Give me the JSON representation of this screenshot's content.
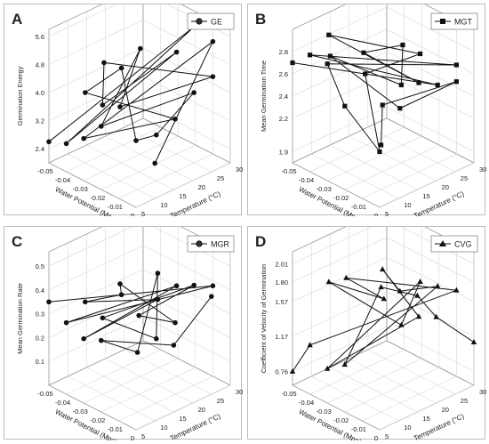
{
  "chart_data": [
    {
      "panel_letter": "A",
      "type": "line",
      "title": "",
      "legend": {
        "label": "GE",
        "marker": "circle",
        "placement": "top-right"
      },
      "zlabel": "Germination Energy",
      "xlabel": "Water Potential (Mpa)",
      "ylabel": "Temperature (°C)",
      "z_ticks": [
        "2.4",
        "3.2",
        "4.0",
        "4.8",
        "5.6"
      ],
      "x_ticks": [
        "-0.05",
        "-0.04",
        "-0.03",
        "-0.02",
        "-0.01",
        "0"
      ],
      "y_ticks": [
        "5",
        "10",
        "15",
        "20",
        "25",
        "30"
      ],
      "zlim": [
        2.0,
        5.8
      ],
      "grid": true,
      "points": [
        {
          "wp": -0.05,
          "t": 5,
          "v": 2.6
        },
        {
          "wp": -0.02,
          "t": 30,
          "v": 5.4
        },
        {
          "wp": -0.04,
          "t": 5,
          "v": 2.8
        },
        {
          "wp": -0.02,
          "t": 25,
          "v": 4.9
        },
        {
          "wp": -0.03,
          "t": 10,
          "v": 3.9
        },
        {
          "wp": -0.04,
          "t": 15,
          "v": 4.6
        },
        {
          "wp": -0.01,
          "t": 30,
          "v": 4.2
        },
        {
          "wp": -0.02,
          "t": 10,
          "v": 4.1
        },
        {
          "wp": -0.03,
          "t": 20,
          "v": 5.0
        },
        {
          "wp": -0.02,
          "t": 5,
          "v": 3.8
        },
        {
          "wp": -0.01,
          "t": 25,
          "v": 4.0
        },
        {
          "wp": -0.01,
          "t": 15,
          "v": 3.3
        },
        {
          "wp": 0.0,
          "t": 5,
          "v": 3.9
        },
        {
          "wp": -0.03,
          "t": 15,
          "v": 4.7
        },
        {
          "wp": -0.04,
          "t": 10,
          "v": 4.0
        },
        {
          "wp": -0.01,
          "t": 20,
          "v": 3.5
        },
        {
          "wp": -0.03,
          "t": 5,
          "v": 3.2
        },
        {
          "wp": -0.01,
          "t": 30,
          "v": 5.2
        },
        {
          "wp": 0.0,
          "t": 10,
          "v": 3.0
        }
      ]
    },
    {
      "panel_letter": "B",
      "type": "line",
      "title": "",
      "legend": {
        "label": "MGT",
        "marker": "square",
        "placement": "top-right"
      },
      "zlabel": "Mean Germination Time",
      "xlabel": "Water Potential (Mpa)",
      "ylabel": "Temperature (°C)",
      "z_ticks": [
        "1.9",
        "2.2",
        "2.4",
        "2.6",
        "2.8"
      ],
      "x_ticks": [
        "-0.05",
        "-0.04",
        "-0.03",
        "-0.02",
        "-0.01",
        "0"
      ],
      "y_ticks": [
        "5",
        "10",
        "15",
        "20",
        "25",
        "30"
      ],
      "zlim": [
        1.8,
        3.0
      ],
      "grid": true,
      "points": [
        {
          "wp": -0.05,
          "t": 5,
          "v": 2.7
        },
        {
          "wp": -0.01,
          "t": 25,
          "v": 2.5
        },
        {
          "wp": -0.04,
          "t": 5,
          "v": 2.85
        },
        {
          "wp": -0.01,
          "t": 30,
          "v": 2.6
        },
        {
          "wp": -0.03,
          "t": 5,
          "v": 2.85
        },
        {
          "wp": -0.02,
          "t": 5,
          "v": 2.55
        },
        {
          "wp": 0.0,
          "t": 5,
          "v": 2.3
        },
        {
          "wp": -0.03,
          "t": 15,
          "v": 2.6
        },
        {
          "wp": -0.02,
          "t": 25,
          "v": 2.7
        },
        {
          "wp": -0.04,
          "t": 10,
          "v": 2.95
        },
        {
          "wp": -0.01,
          "t": 20,
          "v": 2.6
        },
        {
          "wp": -0.02,
          "t": 10,
          "v": 2.95
        },
        {
          "wp": -0.03,
          "t": 25,
          "v": 2.7
        },
        {
          "wp": -0.02,
          "t": 20,
          "v": 2.5
        },
        {
          "wp": -0.05,
          "t": 15,
          "v": 2.6
        },
        {
          "wp": -0.01,
          "t": 15,
          "v": 2.45
        },
        {
          "wp": -0.01,
          "t": 30,
          "v": 2.45
        },
        {
          "wp": -0.02,
          "t": 15,
          "v": 2.4
        },
        {
          "wp": -0.01,
          "t": 10,
          "v": 2.2
        }
      ]
    },
    {
      "panel_letter": "C",
      "type": "line",
      "title": "",
      "legend": {
        "label": "MGR",
        "marker": "circle",
        "placement": "top-right"
      },
      "zlabel": "Mean Germination Rate",
      "xlabel": "Water Potential (Mpa)",
      "ylabel": "Temperature (°C)",
      "z_ticks": [
        "0.1",
        "0.2",
        "0.3",
        "0.4",
        "0.5"
      ],
      "x_ticks": [
        "-0.05",
        "-0.04",
        "-0.03",
        "-0.02",
        "-0.01",
        "0"
      ],
      "y_ticks": [
        "5",
        "10",
        "15",
        "20",
        "25",
        "30"
      ],
      "zlim": [
        0.0,
        0.56
      ],
      "grid": true,
      "points": [
        {
          "wp": -0.05,
          "t": 5,
          "v": 0.35
        },
        {
          "wp": -0.01,
          "t": 30,
          "v": 0.38
        },
        {
          "wp": -0.04,
          "t": 5,
          "v": 0.3
        },
        {
          "wp": -0.02,
          "t": 25,
          "v": 0.38
        },
        {
          "wp": -0.03,
          "t": 5,
          "v": 0.27
        },
        {
          "wp": -0.02,
          "t": 20,
          "v": 0.36
        },
        {
          "wp": -0.04,
          "t": 10,
          "v": 0.35
        },
        {
          "wp": -0.03,
          "t": 15,
          "v": 0.38
        },
        {
          "wp": -0.02,
          "t": 10,
          "v": 0.5
        },
        {
          "wp": -0.01,
          "t": 20,
          "v": 0.3
        },
        {
          "wp": -0.02,
          "t": 15,
          "v": 0.33
        },
        {
          "wp": -0.01,
          "t": 25,
          "v": 0.42
        },
        {
          "wp": -0.03,
          "t": 10,
          "v": 0.32
        },
        {
          "wp": -0.01,
          "t": 15,
          "v": 0.27
        },
        {
          "wp": -0.02,
          "t": 20,
          "v": 0.47
        },
        {
          "wp": -0.01,
          "t": 10,
          "v": 0.25
        },
        {
          "wp": -0.02,
          "t": 5,
          "v": 0.3
        },
        {
          "wp": 0.0,
          "t": 15,
          "v": 0.28
        },
        {
          "wp": 0.0,
          "t": 25,
          "v": 0.41
        }
      ]
    },
    {
      "panel_letter": "D",
      "type": "line",
      "title": "",
      "legend": {
        "label": "CVG",
        "marker": "triangle",
        "placement": "top-right"
      },
      "zlabel": "Coefficient of Velocity of Germination",
      "xlabel": "Water Potential (Mpa)",
      "ylabel": "Temperature (°C)",
      "z_ticks": [
        "0.76",
        "1.17",
        "1.57",
        "1.80",
        "2.01"
      ],
      "z_tick_values": [
        0.76,
        1.17,
        1.57,
        1.8,
        2.01
      ],
      "x_ticks": [
        "-0.05",
        "-0.04",
        "-0.03",
        "-0.02",
        "-0.01",
        "0"
      ],
      "y_ticks": [
        "5",
        "10",
        "15",
        "20",
        "25",
        "30"
      ],
      "zlim": [
        0.6,
        2.15
      ],
      "grid": true,
      "points": [
        {
          "wp": -0.05,
          "t": 5,
          "v": 0.76
        },
        {
          "wp": -0.04,
          "t": 5,
          "v": 1.17
        },
        {
          "wp": -0.01,
          "t": 30,
          "v": 1.6
        },
        {
          "wp": -0.03,
          "t": 10,
          "v": 1.95
        },
        {
          "wp": -0.03,
          "t": 20,
          "v": 1.5
        },
        {
          "wp": -0.04,
          "t": 10,
          "v": 1.8
        },
        {
          "wp": -0.02,
          "t": 20,
          "v": 1.3
        },
        {
          "wp": -0.02,
          "t": 25,
          "v": 1.7
        },
        {
          "wp": -0.03,
          "t": 5,
          "v": 1.0
        },
        {
          "wp": -0.01,
          "t": 20,
          "v": 1.5
        },
        {
          "wp": -0.02,
          "t": 15,
          "v": 2.05
        },
        {
          "wp": -0.01,
          "t": 15,
          "v": 1.9
        },
        {
          "wp": -0.01,
          "t": 25,
          "v": 1.75
        },
        {
          "wp": -0.02,
          "t": 5,
          "v": 1.15
        },
        {
          "wp": -0.01,
          "t": 10,
          "v": 2.05
        },
        {
          "wp": 0.0,
          "t": 15,
          "v": 1.95
        },
        {
          "wp": 0.0,
          "t": 20,
          "v": 1.6
        },
        {
          "wp": 0.0,
          "t": 30,
          "v": 1.1
        }
      ]
    }
  ]
}
